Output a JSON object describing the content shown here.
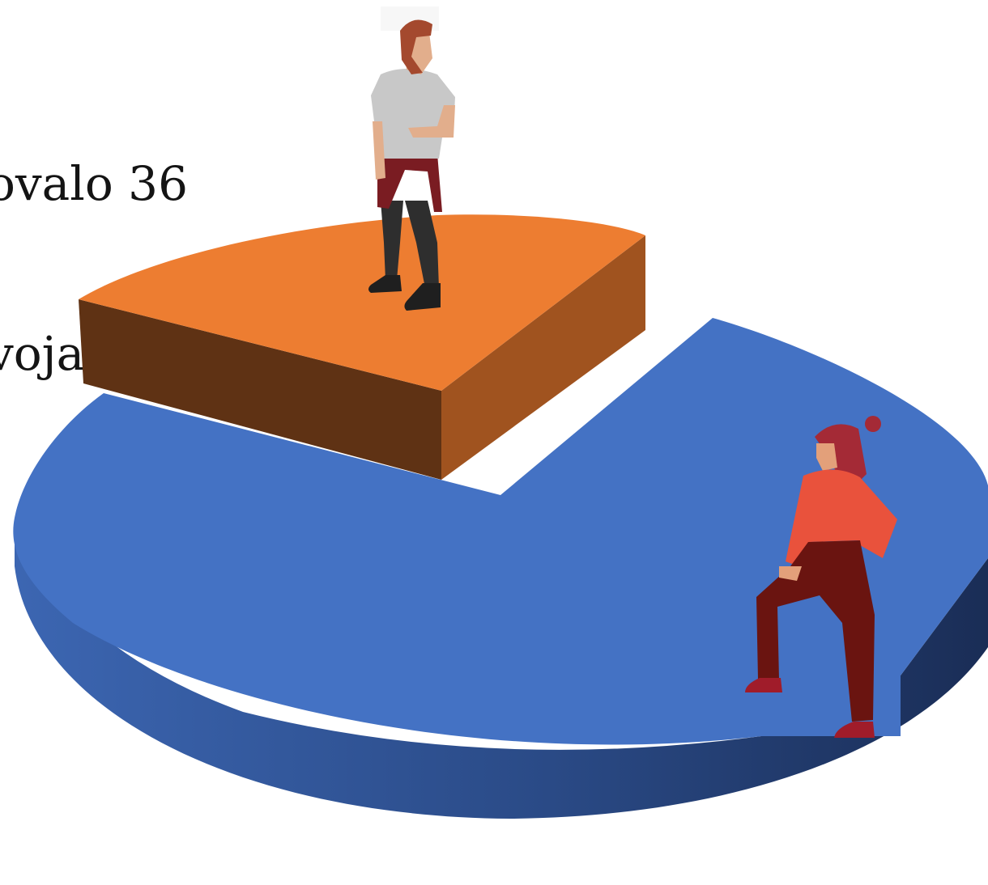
{
  "caption": {
    "line1": "ovalo 36",
    "line2": "vojaka."
  },
  "chart_data": {
    "type": "pie",
    "style": "3d-exploded",
    "title": "",
    "slices": [
      {
        "label": "",
        "share": 0.205,
        "color": "#ED7D31",
        "exploded": true
      },
      {
        "label": "",
        "share": 0.795,
        "color": "#4472C4",
        "exploded": false
      }
    ],
    "legend": "none"
  },
  "figures": [
    {
      "name": "man-standing",
      "on_slice": 0
    },
    {
      "name": "woman-standing",
      "on_slice": 1
    }
  ]
}
